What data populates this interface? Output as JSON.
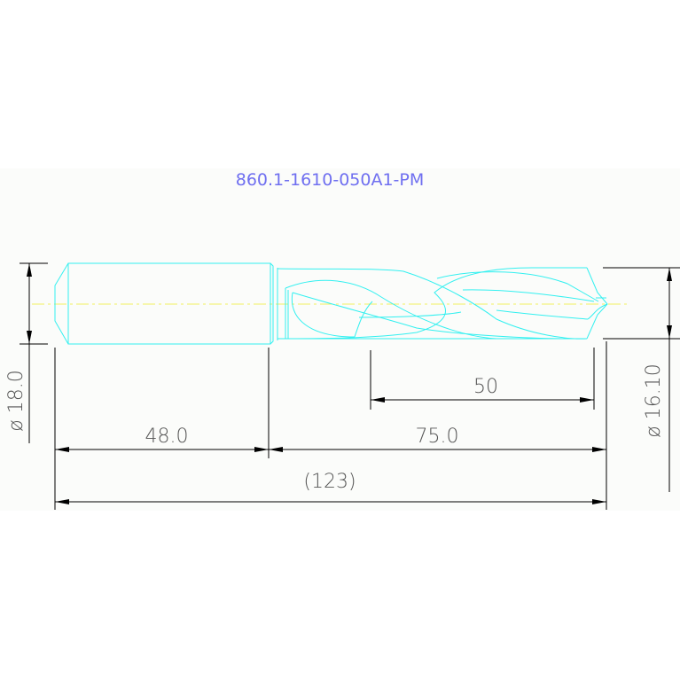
{
  "title": "860.1-1610-050A1-PM",
  "colors": {
    "background": "#fbfcfa",
    "part_outline": "#33f0f0",
    "centerline": "#f0f060",
    "dimension": "#000000",
    "title": "#6f6ff0"
  },
  "dimensions": {
    "shank_diameter": "ø 18.0",
    "body_diameter": "ø 16.10",
    "flute_length": "50",
    "shank_length": "48.0",
    "body_length": "75.0",
    "overall_length": "(123)"
  }
}
